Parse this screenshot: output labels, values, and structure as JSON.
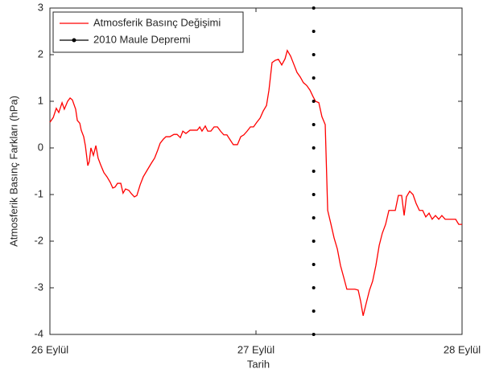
{
  "chart_data": {
    "type": "line",
    "xlabel": "Tarih",
    "ylabel": "Atmosferik Basınç Farkları (hPa)",
    "xlim": [
      0,
      2
    ],
    "xticks": [
      {
        "value": 0,
        "label": "26 Eylül"
      },
      {
        "value": 1,
        "label": "27 Eylül"
      },
      {
        "value": 2,
        "label": "28 Eylül"
      }
    ],
    "ylim": [
      -4,
      3
    ],
    "yticks": [
      -4,
      -3,
      -2,
      -1,
      0,
      1,
      2,
      3
    ],
    "legend": "upper left",
    "series": [
      {
        "name": "Atmosferik Basınç Değişimi",
        "color": "#ff0000",
        "style": "line",
        "x": [
          0,
          0.016,
          0.031,
          0.043,
          0.059,
          0.07,
          0.086,
          0.098,
          0.109,
          0.125,
          0.133,
          0.145,
          0.152,
          0.164,
          0.172,
          0.184,
          0.191,
          0.199,
          0.211,
          0.223,
          0.234,
          0.246,
          0.262,
          0.277,
          0.293,
          0.305,
          0.316,
          0.328,
          0.344,
          0.355,
          0.367,
          0.383,
          0.395,
          0.41,
          0.422,
          0.438,
          0.453,
          0.473,
          0.492,
          0.508,
          0.523,
          0.535,
          0.551,
          0.563,
          0.582,
          0.602,
          0.617,
          0.633,
          0.645,
          0.66,
          0.68,
          0.715,
          0.727,
          0.738,
          0.754,
          0.766,
          0.781,
          0.797,
          0.813,
          0.828,
          0.844,
          0.859,
          0.875,
          0.89,
          0.91,
          0.926,
          0.941,
          0.957,
          0.973,
          0.988,
          1.004,
          1.02,
          1.035,
          1.051,
          1.063,
          1.078,
          1.094,
          1.109,
          1.125,
          1.141,
          1.152,
          1.168,
          1.184,
          1.199,
          1.215,
          1.23,
          1.246,
          1.262,
          1.277,
          1.289,
          1.305,
          1.32,
          1.336,
          1.348,
          1.363,
          1.379,
          1.395,
          1.41,
          1.426,
          1.441,
          1.461,
          1.48,
          1.496,
          1.508,
          1.52,
          1.535,
          1.551,
          1.566,
          1.582,
          1.598,
          1.613,
          1.629,
          1.645,
          1.66,
          1.676,
          1.691,
          1.707,
          1.719,
          1.73,
          1.746,
          1.762,
          1.777,
          1.793,
          1.809,
          1.824,
          1.84,
          1.855,
          1.871,
          1.887,
          1.902,
          1.918,
          1.945,
          1.969,
          1.984,
          2.0
        ],
        "values": [
          0.55,
          0.65,
          0.85,
          0.76,
          0.97,
          0.83,
          1.0,
          1.07,
          1.03,
          0.83,
          0.59,
          0.53,
          0.38,
          0.24,
          0.05,
          -0.38,
          -0.29,
          0.0,
          -0.16,
          0.05,
          -0.22,
          -0.36,
          -0.53,
          -0.62,
          -0.74,
          -0.86,
          -0.84,
          -0.76,
          -0.76,
          -0.97,
          -0.88,
          -0.91,
          -0.98,
          -1.05,
          -1.02,
          -0.79,
          -0.62,
          -0.47,
          -0.33,
          -0.22,
          -0.05,
          0.1,
          0.19,
          0.24,
          0.24,
          0.29,
          0.29,
          0.22,
          0.36,
          0.31,
          0.38,
          0.38,
          0.45,
          0.36,
          0.47,
          0.36,
          0.36,
          0.45,
          0.45,
          0.36,
          0.28,
          0.28,
          0.17,
          0.07,
          0.07,
          0.24,
          0.28,
          0.36,
          0.45,
          0.45,
          0.55,
          0.64,
          0.79,
          0.91,
          1.24,
          1.83,
          1.88,
          1.9,
          1.78,
          1.91,
          2.09,
          1.97,
          1.79,
          1.62,
          1.52,
          1.4,
          1.34,
          1.24,
          1.1,
          1.0,
          0.97,
          0.67,
          0.5,
          -1.34,
          -1.62,
          -1.93,
          -2.17,
          -2.52,
          -2.78,
          -3.03,
          -3.03,
          -3.03,
          -3.05,
          -3.29,
          -3.6,
          -3.33,
          -3.05,
          -2.86,
          -2.52,
          -2.09,
          -1.83,
          -1.64,
          -1.34,
          -1.34,
          -1.34,
          -1.02,
          -1.02,
          -1.45,
          -1.05,
          -0.93,
          -1.0,
          -1.19,
          -1.34,
          -1.34,
          -1.48,
          -1.4,
          -1.53,
          -1.45,
          -1.53,
          -1.45,
          -1.53,
          -1.53,
          -1.53,
          -1.64,
          -1.64
        ]
      },
      {
        "name": "2010 Maule Depremi",
        "color": "#000000",
        "style": "dots",
        "x": [
          1.28,
          1.28,
          1.28,
          1.28,
          1.28,
          1.28,
          1.28,
          1.28,
          1.28,
          1.28,
          1.28,
          1.28,
          1.28,
          1.28,
          1.28
        ],
        "values": [
          -4,
          -3.5,
          -3,
          -2.5,
          -2,
          -1.5,
          -1,
          -0.5,
          0,
          0.5,
          1,
          1.5,
          2,
          2.5,
          3
        ]
      }
    ]
  }
}
